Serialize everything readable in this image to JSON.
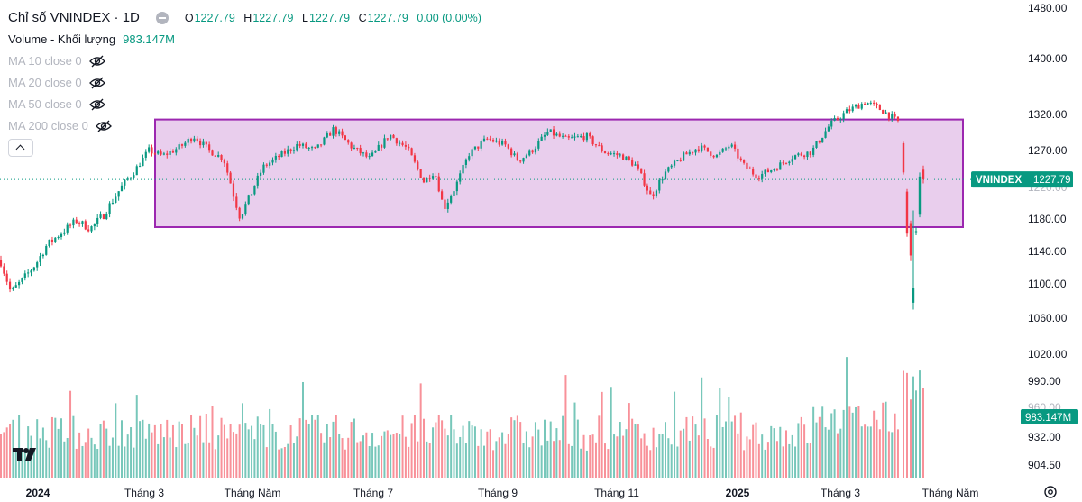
{
  "legend": {
    "title": "Chỉ số VNINDEX · 1D",
    "ohlc": [
      {
        "k": "O",
        "v": "1227.79"
      },
      {
        "k": "H",
        "v": "1227.79"
      },
      {
        "k": "L",
        "v": "1227.79"
      },
      {
        "k": "C",
        "v": "1227.79"
      }
    ],
    "change": "0.00 (0.00%)",
    "volume_label": "Volume - Khối lượng",
    "volume_value": "983.147M",
    "ma": [
      "MA 10 close 0",
      "MA 20 close 0",
      "MA 50 close 0",
      "MA 200 close 0"
    ]
  },
  "colors": {
    "up": "#089981",
    "down": "#f23645",
    "box_border": "#9c27b0",
    "box_fill": "#e1bee7",
    "axis_text": "#131722"
  },
  "chart_data": {
    "type": "candlestick",
    "title": "Chỉ số VNINDEX · 1D",
    "price_axis_ticks": [
      "1480.00",
      "1400.00",
      "1320.00",
      "1270.00",
      "1180.00",
      "1140.00",
      "1100.00",
      "1060.00",
      "1020.00",
      "990.00",
      "932.00",
      "904.50"
    ],
    "price_axis_partial_labels": [
      "1220.00",
      "960.00"
    ],
    "time_axis_ticks": [
      "2024",
      "Tháng 3",
      "Tháng Năm",
      "Tháng 7",
      "Tháng 9",
      "Tháng 11",
      "2025",
      "Tháng 3",
      "Tháng Năm"
    ],
    "last_price_label": {
      "symbol": "VNINDEX",
      "value": "1227.79"
    },
    "volume_label": "983.147M",
    "range_box": {
      "low": 1170,
      "high": 1313,
      "start": "Tháng 3 2024",
      "end": "Tháng Năm 2025"
    },
    "close_path_anchors": [
      [
        0,
        1130
      ],
      [
        12,
        1090
      ],
      [
        25,
        1105
      ],
      [
        40,
        1125
      ],
      [
        52,
        1148
      ],
      [
        70,
        1165
      ],
      [
        85,
        1178
      ],
      [
        100,
        1168
      ],
      [
        115,
        1185
      ],
      [
        130,
        1210
      ],
      [
        148,
        1238
      ],
      [
        165,
        1270
      ],
      [
        180,
        1262
      ],
      [
        200,
        1275
      ],
      [
        215,
        1290
      ],
      [
        232,
        1270
      ],
      [
        248,
        1258
      ],
      [
        258,
        1212
      ],
      [
        266,
        1183
      ],
      [
        278,
        1208
      ],
      [
        292,
        1246
      ],
      [
        310,
        1262
      ],
      [
        330,
        1278
      ],
      [
        350,
        1270
      ],
      [
        370,
        1300
      ],
      [
        390,
        1275
      ],
      [
        410,
        1258
      ],
      [
        432,
        1292
      ],
      [
        452,
        1272
      ],
      [
        470,
        1225
      ],
      [
        482,
        1240
      ],
      [
        492,
        1192
      ],
      [
        506,
        1220
      ],
      [
        520,
        1265
      ],
      [
        540,
        1286
      ],
      [
        560,
        1278
      ],
      [
        575,
        1255
      ],
      [
        590,
        1270
      ],
      [
        608,
        1296
      ],
      [
        628,
        1285
      ],
      [
        650,
        1290
      ],
      [
        670,
        1268
      ],
      [
        690,
        1262
      ],
      [
        705,
        1248
      ],
      [
        722,
        1205
      ],
      [
        738,
        1238
      ],
      [
        758,
        1262
      ],
      [
        775,
        1275
      ],
      [
        795,
        1262
      ],
      [
        810,
        1278
      ],
      [
        825,
        1248
      ],
      [
        840,
        1232
      ],
      [
        860,
        1245
      ],
      [
        880,
        1262
      ],
      [
        900,
        1268
      ],
      [
        920,
        1305
      ],
      [
        940,
        1325
      ],
      [
        960,
        1338
      ],
      [
        980,
        1325
      ],
      [
        995,
        1310
      ]
    ],
    "after_gap_candles": [
      {
        "o": 1280,
        "h": 1282,
        "l": 1235,
        "c": 1238
      },
      {
        "o": 1212,
        "h": 1215,
        "l": 1158,
        "c": 1162
      },
      {
        "o": 1175,
        "h": 1178,
        "l": 1128,
        "c": 1135
      },
      {
        "o": 1078,
        "h": 1190,
        "l": 1070,
        "c": 1095
      },
      {
        "o": 1165,
        "h": 1170,
        "l": 1160,
        "c": 1165
      },
      {
        "o": 1185,
        "h": 1238,
        "l": 1182,
        "c": 1232
      },
      {
        "o": 1242,
        "h": 1248,
        "l": 1222,
        "c": 1228
      }
    ]
  }
}
